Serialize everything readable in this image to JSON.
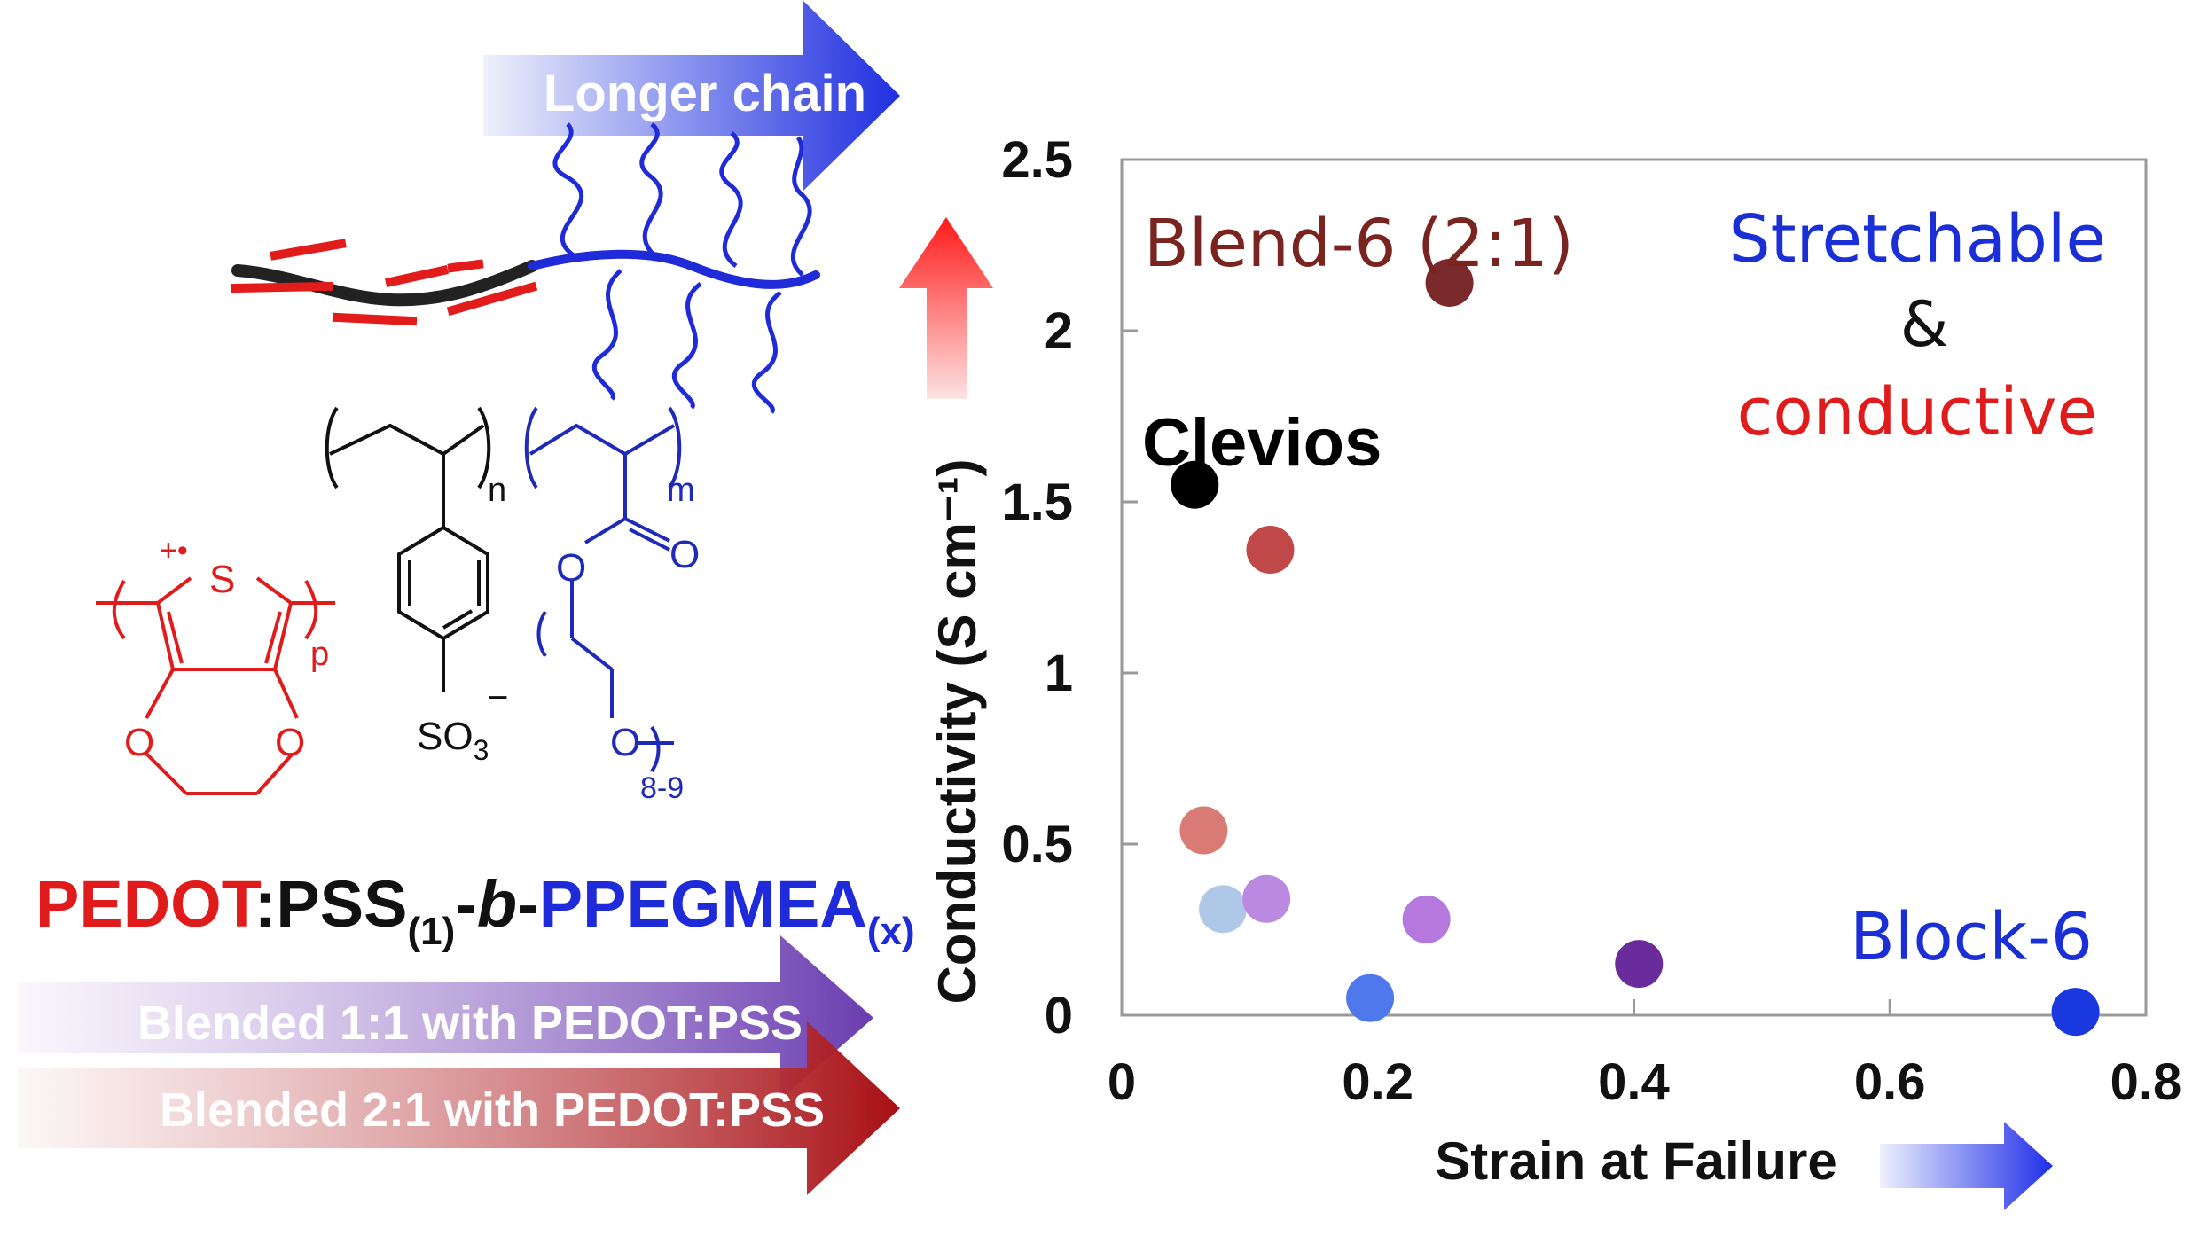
{
  "arrows": {
    "chain": {
      "label": "Longer chain",
      "color_start": "#eef1fb",
      "color_end": "#1f2fe0"
    },
    "blend11": {
      "label": "Blended 1:1 with PEDOT:PSS",
      "color_start": "#f7f0fb",
      "color_end": "#6a3db0"
    },
    "blend21": {
      "label": "Blended 2:1 with PEDOT:PSS",
      "color_start": "#fbf1f1",
      "color_end": "#a80f14"
    },
    "conductivity_up": {
      "color_start": "#fde3e3",
      "color_end": "#ff1a1a"
    },
    "strain_right": {
      "color_start": "#eef0fc",
      "color_end": "#1f2fe8"
    }
  },
  "structure": {
    "pedot_charge": "+•",
    "pedot_sulfur": "S",
    "pedot_o1": "O",
    "pedot_o2": "O",
    "sub_p": "p",
    "sub_n": "n",
    "sub_m": "m",
    "carbonyl_o": "O",
    "ester_o": "O",
    "ether_o": "O",
    "so3": "SO",
    "so3_sub": "3",
    "so3_charge": "−",
    "peg_repeat": "8-9",
    "colors": {
      "pedot": "#e01b1b",
      "pss": "#111111",
      "peg": "#1f2ab8"
    }
  },
  "formula": {
    "pedot": "PEDOT",
    "colon": ":",
    "pss": "PSS",
    "pss_sub": "(1)",
    "dash1": "-",
    "b": "b",
    "dash2": "-",
    "ppegmea": "PPEGMEA",
    "ppegmea_sub": "(x)"
  },
  "annotations": {
    "blend6": "Blend-6 (2:1)",
    "clevios": "Clevios",
    "stretchable": "Stretchable",
    "amp": "&",
    "conductive": "conductive",
    "block6": "Block-6"
  },
  "chart_data": {
    "type": "scatter",
    "title": "",
    "xlabel": "Strain at Failure",
    "ylabel": "Conductivity (S cm⁻¹)",
    "xlim": [
      0,
      0.8
    ],
    "ylim": [
      0,
      2.5
    ],
    "xticks": [
      0,
      0.2,
      0.4,
      0.6,
      0.8
    ],
    "xtick_labels": [
      "0",
      "0.2",
      "0.4",
      "0.6",
      "0.8"
    ],
    "yticks": [
      0,
      0.5,
      1,
      1.5,
      2,
      2.5
    ],
    "ytick_labels": [
      "0",
      "0.5",
      "1",
      "1.5",
      "2",
      "2.5"
    ],
    "grid": false,
    "points": [
      {
        "x": 0.057,
        "y": 1.55,
        "color": "#000000",
        "label": "Clevios"
      },
      {
        "x": 0.256,
        "y": 2.14,
        "color": "#7a2a2a",
        "label": "Blend-6 (2:1)"
      },
      {
        "x": 0.116,
        "y": 1.36,
        "color": "#c04848"
      },
      {
        "x": 0.064,
        "y": 0.54,
        "color": "#d97a74"
      },
      {
        "x": 0.079,
        "y": 0.31,
        "color": "#b0c8e8"
      },
      {
        "x": 0.113,
        "y": 0.34,
        "color": "#b98ae0"
      },
      {
        "x": 0.238,
        "y": 0.28,
        "color": "#b579de"
      },
      {
        "x": 0.194,
        "y": 0.05,
        "color": "#4f78ec"
      },
      {
        "x": 0.404,
        "y": 0.15,
        "color": "#6a2c9c"
      },
      {
        "x": 0.745,
        "y": 0.01,
        "color": "#1a38e0",
        "label": "Block-6"
      }
    ]
  }
}
